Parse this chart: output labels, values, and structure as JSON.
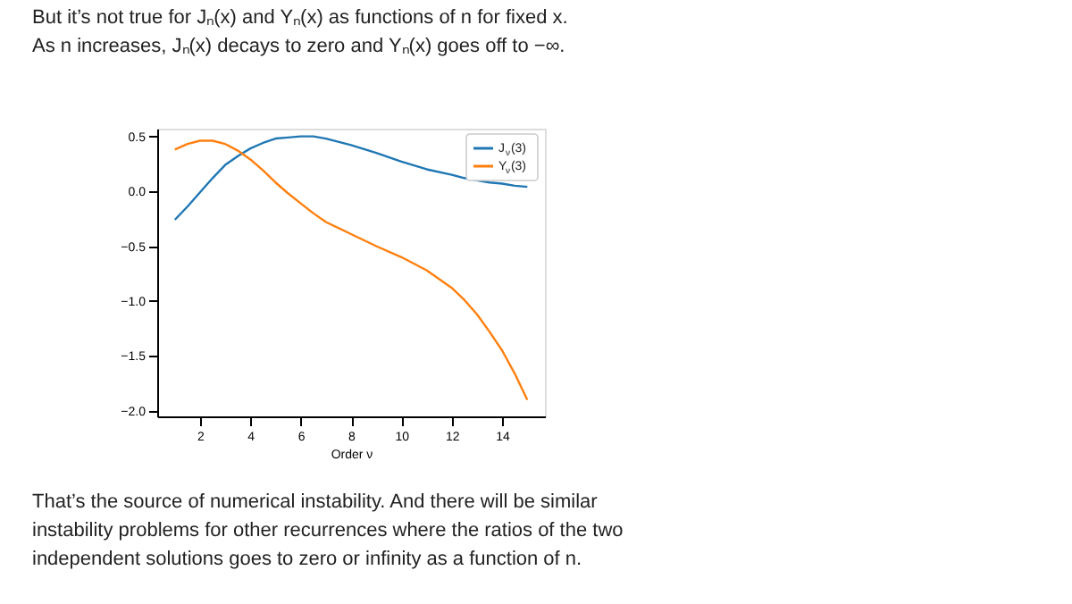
{
  "chart_data": {
    "type": "line",
    "title": "But it’s not true for Jₙ(x) and Yₙ(x) as functions of n for fixed x. As n increases, Jₙ(x) decays to zero and Yₙ(x) goes off to −∞.",
    "annotations": [
      "That’s the source of numerical instability. And there will be similar instability problems for other recurrences where the ratios of the two independent solutions goes to zero or infinity as a function of n."
    ],
    "xlabel": "Order ν",
    "x": [
      1,
      1.5,
      2,
      2.5,
      3,
      3.5,
      4,
      4.5,
      5,
      5.5,
      6,
      6.5,
      7,
      8,
      9,
      10,
      11,
      12,
      12.5,
      13,
      13.5,
      14,
      14.5,
      15
    ],
    "series": [
      {
        "name": "J$_{ν}$(3)",
        "color": "#1f77b4",
        "values": [
          -0.26,
          -0.14,
          -0.01,
          0.12,
          0.24,
          0.32,
          0.39,
          0.44,
          0.48,
          0.49,
          0.5,
          0.5,
          0.48,
          0.42,
          0.35,
          0.27,
          0.2,
          0.15,
          0.12,
          0.1,
          0.08,
          0.07,
          0.05,
          0.04
        ]
      },
      {
        "name": "Y$_{ν}$(3)",
        "color": "#ff7f0e",
        "values": [
          0.38,
          0.43,
          0.46,
          0.46,
          0.43,
          0.37,
          0.29,
          0.19,
          0.08,
          -0.02,
          -0.11,
          -0.2,
          -0.28,
          -0.39,
          -0.5,
          -0.6,
          -0.72,
          -0.88,
          -0.99,
          -1.12,
          -1.28,
          -1.45,
          -1.66,
          -1.9
        ]
      }
    ],
    "xlim": [
      0.3,
      15.7
    ],
    "xticks": [
      2,
      4,
      6,
      8,
      10,
      12,
      14
    ],
    "ylim": [
      -2.05,
      0.57
    ],
    "yticks": [
      {
        "value": -2,
        "label": "−2.0"
      },
      {
        "value": -1.5,
        "label": "−1.5"
      },
      {
        "value": -1,
        "label": "−1.0"
      },
      {
        "value": -0.5,
        "label": "−0.5"
      },
      {
        "value": 0,
        "label": "0.0"
      },
      {
        "value": 0.5,
        "label": "0.5"
      }
    ],
    "grid": false,
    "legend": "top right",
    "marker": "none",
    "line_style": "solid"
  }
}
